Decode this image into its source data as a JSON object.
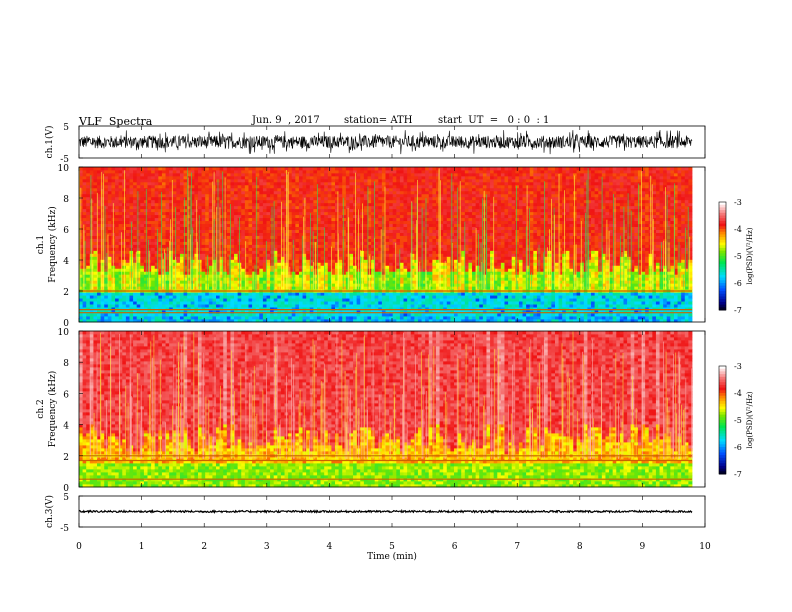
{
  "header": {
    "title": "VLF  Spectra",
    "date": "Jun. 9  , 2017",
    "station": "station= ATH",
    "start": "start  UT  =   0 : 0  : 1"
  },
  "chart_data": [
    {
      "type": "line",
      "ylabel": "ch.1(V)",
      "yticks": [
        "5",
        "-5"
      ],
      "ylim": [
        -5,
        5
      ],
      "xlim": [
        0,
        10
      ],
      "color": "#000000",
      "data_note": "dense VLF waveform, amplitude approx ±2 V",
      "amplitude": 2.0
    },
    {
      "type": "heatmap",
      "ylabel": "ch.1\nFrequency  (kHz)",
      "yticks": [
        "0",
        "2",
        "4",
        "6",
        "8",
        "10"
      ],
      "ylim": [
        0,
        10
      ],
      "xlim": [
        0,
        9.8
      ],
      "colorbar": {
        "label": "log(PSD)(V²/Hz)",
        "ticks": [
          "-3",
          "-4",
          "-5",
          "-6",
          "-7"
        ],
        "range": [
          -7,
          -3
        ]
      },
      "features": {
        "band_khz": [
          0.3,
          2.0
        ],
        "lines_khz": [
          0.6,
          0.8,
          2.0
        ]
      }
    },
    {
      "type": "heatmap",
      "ylabel": "ch.2\nFrequency  (kHz)",
      "yticks": [
        "0",
        "2",
        "4",
        "6",
        "8",
        "10"
      ],
      "ylim": [
        0,
        10
      ],
      "xlim": [
        0,
        9.8
      ],
      "colorbar": {
        "label": "log(PSD)(V²/Hz)",
        "ticks": [
          "-3",
          "-4",
          "-5",
          "-6",
          "-7"
        ],
        "range": [
          -7,
          -3
        ]
      },
      "features": {
        "lines_khz": [
          0.5,
          1.7,
          2.0
        ]
      }
    },
    {
      "type": "line",
      "ylabel": "ch.3(V)",
      "yticks": [
        "5",
        "-5"
      ],
      "ylim": [
        -5,
        5
      ],
      "xlim": [
        0,
        10
      ],
      "color": "#000000",
      "amplitude": 0.3
    }
  ],
  "xaxis": {
    "label": "Time  (min)",
    "ticks": [
      "0",
      "1",
      "2",
      "3",
      "4",
      "5",
      "6",
      "7",
      "8",
      "9",
      "10"
    ]
  }
}
